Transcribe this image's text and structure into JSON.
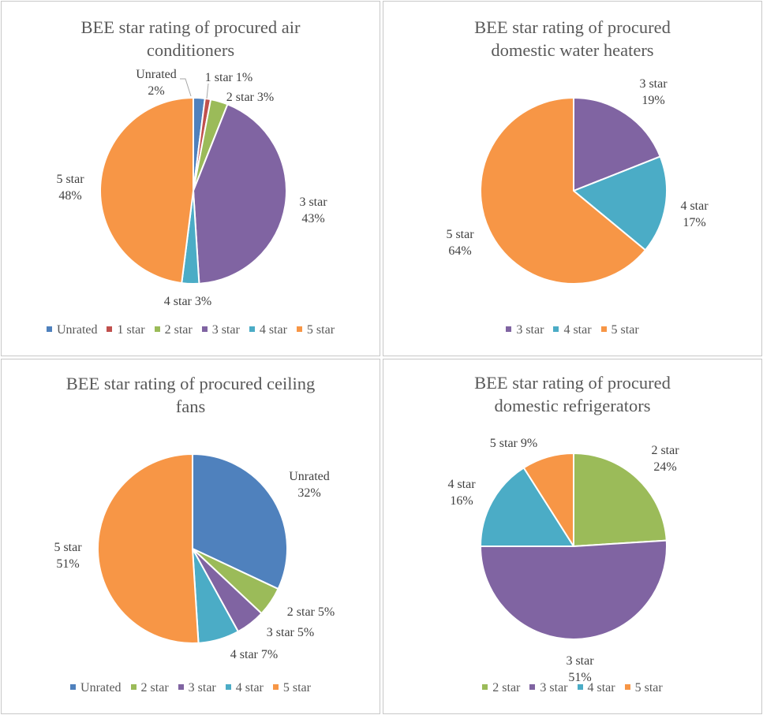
{
  "chart_data": [
    {
      "type": "pie",
      "title": [
        "BEE star rating of procured air",
        "conditioners"
      ],
      "slices": [
        {
          "name": "Unrated",
          "value": 2,
          "label": [
            "Unrated",
            "2%"
          ],
          "color": "#4F81BD"
        },
        {
          "name": "1 star",
          "value": 1,
          "label": [
            "1 star 1%"
          ],
          "color": "#C0504D"
        },
        {
          "name": "2 star",
          "value": 3,
          "label": [
            "2 star 3%"
          ],
          "color": "#9BBB59"
        },
        {
          "name": "3 star",
          "value": 43,
          "label": [
            "3 star",
            "43%"
          ],
          "color": "#8064A2"
        },
        {
          "name": "4 star",
          "value": 3,
          "label": [
            "4 star 3%"
          ],
          "color": "#4BACC6"
        },
        {
          "name": "5 star",
          "value": 48,
          "label": [
            "5 star",
            "48%"
          ],
          "color": "#F79646"
        }
      ],
      "legend": [
        "Unrated",
        "1 star",
        "2 star",
        "3 star",
        "4 star",
        "5 star"
      ],
      "legend_position": "bottom"
    },
    {
      "type": "pie",
      "title": [
        "BEE star rating of procured",
        "domestic water heaters"
      ],
      "slices": [
        {
          "name": "3 star",
          "value": 19,
          "label": [
            "3 star",
            "19%"
          ],
          "color": "#8064A2"
        },
        {
          "name": "4 star",
          "value": 17,
          "label": [
            "4 star",
            "17%"
          ],
          "color": "#4BACC6"
        },
        {
          "name": "5 star",
          "value": 64,
          "label": [
            "5 star",
            "64%"
          ],
          "color": "#F79646"
        }
      ],
      "legend": [
        "3 star",
        "4 star",
        "5 star"
      ],
      "legend_position": "bottom"
    },
    {
      "type": "pie",
      "title": [
        "BEE star rating of procured ceiling",
        "fans"
      ],
      "slices": [
        {
          "name": "Unrated",
          "value": 32,
          "label": [
            "Unrated",
            "32%"
          ],
          "color": "#4F81BD"
        },
        {
          "name": "2 star",
          "value": 5,
          "label": [
            "2 star 5%"
          ],
          "color": "#9BBB59"
        },
        {
          "name": "3 star",
          "value": 5,
          "label": [
            "3 star 5%"
          ],
          "color": "#8064A2"
        },
        {
          "name": "4 star",
          "value": 7,
          "label": [
            "4 star 7%"
          ],
          "color": "#4BACC6"
        },
        {
          "name": "5 star",
          "value": 51,
          "label": [
            "5 star",
            "51%"
          ],
          "color": "#F79646"
        }
      ],
      "legend": [
        "Unrated",
        "2 star",
        "3 star",
        "4 star",
        "5 star"
      ],
      "legend_position": "bottom"
    },
    {
      "type": "pie",
      "title": [
        "BEE star rating of procured",
        "domestic refrigerators"
      ],
      "slices": [
        {
          "name": "2 star",
          "value": 24,
          "label": [
            "2 star",
            "24%"
          ],
          "color": "#9BBB59"
        },
        {
          "name": "3 star",
          "value": 51,
          "label": [
            "3 star",
            "51%"
          ],
          "color": "#8064A2"
        },
        {
          "name": "4 star",
          "value": 16,
          "label": [
            "4 star",
            "16%"
          ],
          "color": "#4BACC6"
        },
        {
          "name": "5 star",
          "value": 9,
          "label": [
            "5 star 9%"
          ],
          "color": "#F79646"
        }
      ],
      "legend": [
        "2 star",
        "3 star",
        "4 star",
        "5 star"
      ],
      "legend_position": "bottom"
    }
  ],
  "colors": {
    "Unrated": "#4F81BD",
    "1 star": "#C0504D",
    "2 star": "#9BBB59",
    "3 star": "#8064A2",
    "4 star": "#4BACC6",
    "5 star": "#F79646"
  }
}
